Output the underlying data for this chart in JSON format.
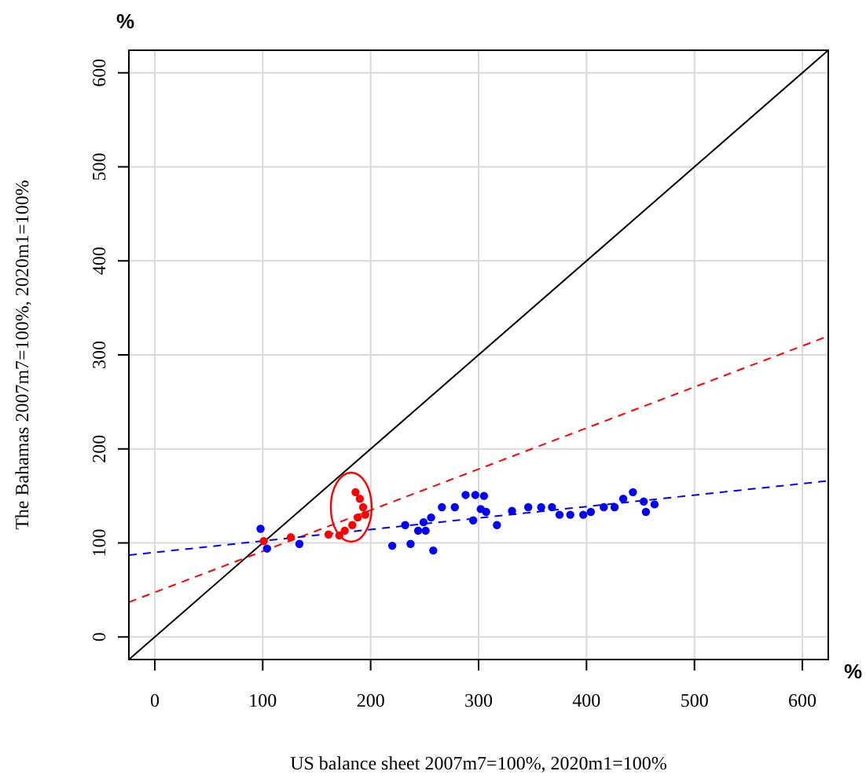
{
  "chart_data": {
    "type": "scatter",
    "xlabel": "US balance sheet 2007m7=100%, 2020m1=100%",
    "ylabel": "The Bahamas 2007m7=100%, 2020m1=100%",
    "annotations": [
      "%",
      "%"
    ],
    "xlim": [
      -24,
      624
    ],
    "ylim": [
      -24,
      624
    ],
    "xticks": [
      0,
      100,
      200,
      300,
      400,
      500,
      600
    ],
    "yticks": [
      0,
      100,
      200,
      300,
      400,
      500,
      600
    ],
    "grid": true,
    "marker": "circle",
    "series": [
      {
        "type": "line",
        "color": "#000000",
        "line_style": "solid",
        "marker": "none",
        "x": [
          -24,
          624
        ],
        "values": [
          -24,
          624
        ]
      },
      {
        "type": "line",
        "color": "#ff0000",
        "line_style": "dashed",
        "marker": "none",
        "x": [
          -24,
          624
        ],
        "values": [
          37,
          320
        ]
      },
      {
        "type": "line",
        "color": "#0000ff",
        "line_style": "dashed",
        "marker": "none",
        "x": [
          -24,
          624
        ],
        "values": [
          87,
          166
        ]
      },
      {
        "color": "#0000ff",
        "x": [
          98,
          104,
          134,
          220,
          232,
          237,
          244,
          249,
          256,
          251,
          258,
          266,
          278,
          288,
          297,
          305,
          295,
          302,
          307,
          317,
          331,
          346,
          358,
          368,
          375,
          385,
          397,
          404,
          416,
          426,
          434,
          443,
          453,
          463,
          455
        ],
        "values": [
          115,
          94,
          99,
          97,
          119,
          99,
          113,
          122,
          127,
          113,
          92,
          138,
          138,
          151,
          151,
          150,
          124,
          136,
          133,
          119,
          134,
          138,
          138,
          138,
          130,
          130,
          130,
          133,
          138,
          138,
          147,
          154,
          144,
          141,
          133
        ]
      },
      {
        "color": "#ff0000",
        "x": [
          101,
          126,
          161,
          171,
          176,
          183,
          188,
          193,
          190,
          186,
          195
        ],
        "values": [
          102,
          106,
          109,
          108,
          113,
          119,
          127,
          138,
          147,
          154,
          130
        ]
      }
    ]
  }
}
